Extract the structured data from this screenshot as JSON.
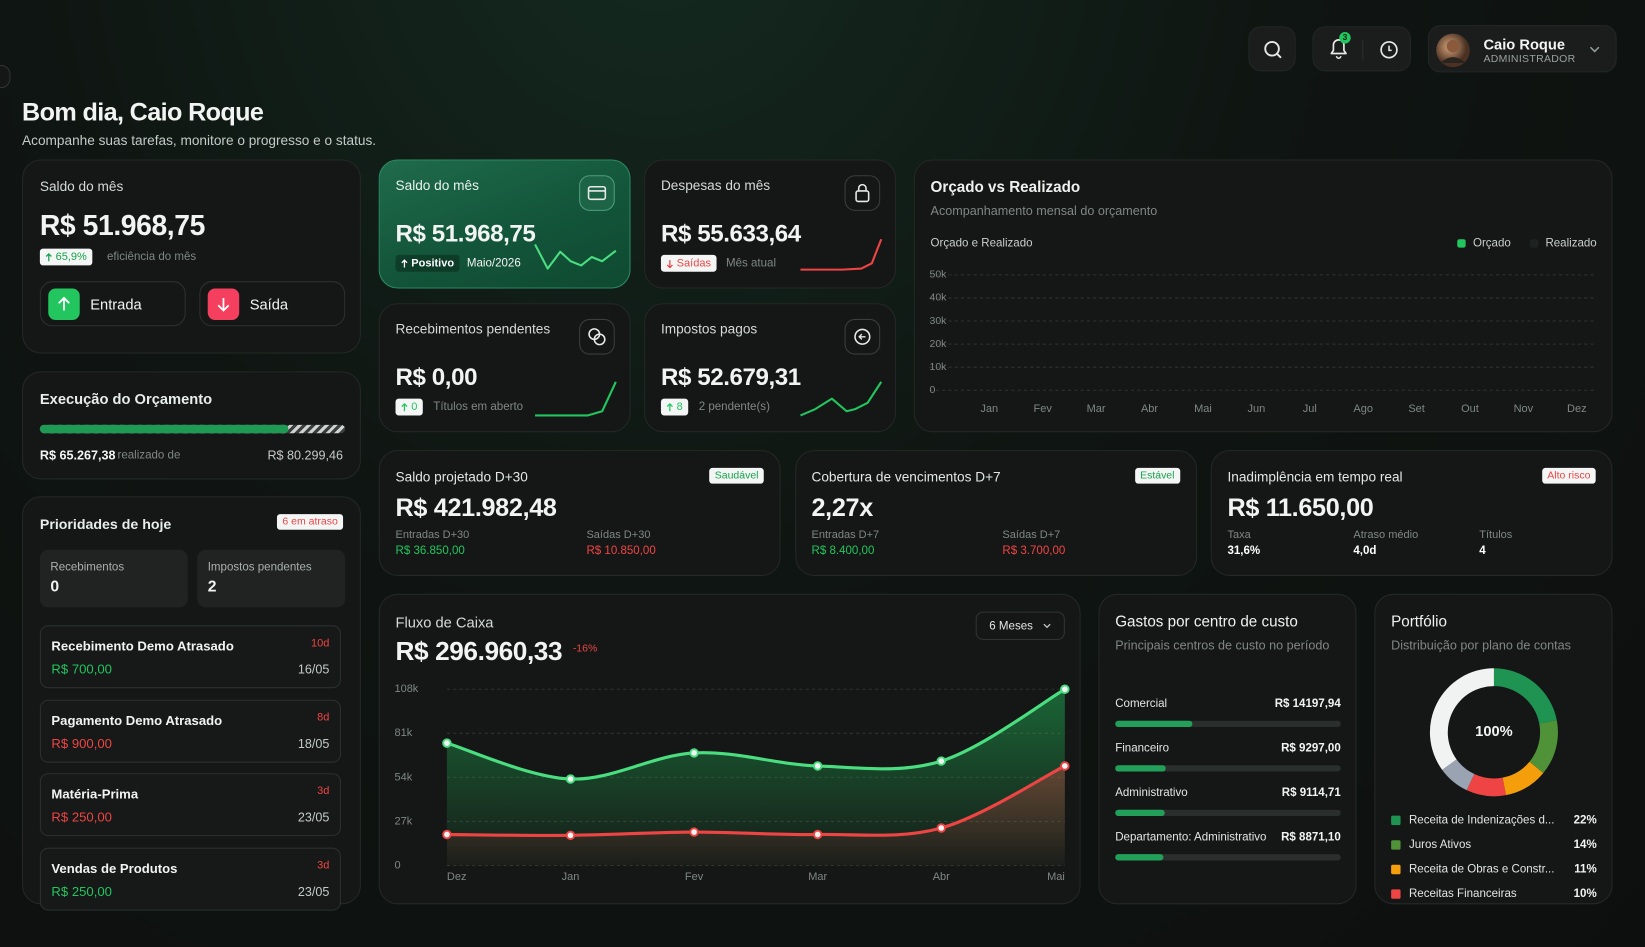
{
  "header": {
    "notifications": "3",
    "user_name": "Caio Roque",
    "user_role": "ADMINISTRADOR"
  },
  "greeting": {
    "title": "Bom dia, Caio Roque",
    "subtitle": "Acompanhe suas tarefas, monitore o progresso e o status."
  },
  "balance": {
    "label": "Saldo do mês",
    "value": "R$ 51.968,75",
    "badge": "65,9%",
    "note": "eficiência do mês",
    "income_button": "Entrada",
    "expense_button": "Saída"
  },
  "budget_execution": {
    "title": "Execução do Orçamento",
    "realized": "R$ 65.267,38",
    "realized_note": "realizado de",
    "total": "R$ 80.299,46"
  },
  "priorities": {
    "title": "Prioridades de hoje",
    "badge": "6 em atraso",
    "stats": [
      {
        "label": "Recebimentos",
        "value": "0"
      },
      {
        "label": "Impostos pendentes",
        "value": "2"
      }
    ],
    "items": [
      {
        "title": "Recebimento Demo Atrasado",
        "delay": "10d",
        "amount": "R$ 700,00",
        "date": "16/05",
        "color": "#22c55e"
      },
      {
        "title": "Pagamento Demo Atrasado",
        "delay": "8d",
        "amount": "R$ 900,00",
        "date": "18/05",
        "color": "#ef4444"
      },
      {
        "title": "Matéria-Prima",
        "delay": "3d",
        "amount": "R$ 250,00",
        "date": "23/05",
        "color": "#ef4444"
      },
      {
        "title": "Vendas de Produtos",
        "delay": "3d",
        "amount": "R$ 250,00",
        "date": "23/05",
        "color": "#22c55e"
      }
    ]
  },
  "kpis": [
    {
      "title": "Saldo do mês",
      "value": "R$ 51.968,75",
      "badge": "Positivo",
      "note": "Maio/2026",
      "badge_color": "#ffffff"
    },
    {
      "title": "Despesas do mês",
      "value": "R$ 55.633,64",
      "badge": "Saídas",
      "note": "Mês atual",
      "badge_color": "#ef4444"
    },
    {
      "title": "Recebimentos pendentes",
      "value": "R$ 0,00",
      "badge": "0",
      "note": "Títulos em aberto",
      "badge_color": "#22c55e"
    },
    {
      "title": "Impostos pagos",
      "value": "R$ 52.679,31",
      "badge": "8",
      "note": "2 pendente(s)",
      "badge_color": "#22c55e"
    }
  ],
  "forecast": [
    {
      "title": "Saldo projetado D+30",
      "tag": "Saudável",
      "tag_color": "#16a34a",
      "value": "R$ 421.982,48",
      "stats": [
        {
          "label": "Entradas D+30",
          "value": "R$ 36.850,00",
          "color": "#22c55e"
        },
        {
          "label": "Saídas D+30",
          "value": "R$ 10.850,00",
          "color": "#ef4444"
        }
      ]
    },
    {
      "title": "Cobertura de vencimentos D+7",
      "tag": "Estável",
      "tag_color": "#16a34a",
      "value": "2,27x",
      "stats": [
        {
          "label": "Entradas D+7",
          "value": "R$ 8.400,00",
          "color": "#22c55e"
        },
        {
          "label": "Saídas D+7",
          "value": "R$ 3.700,00",
          "color": "#ef4444"
        }
      ]
    },
    {
      "title": "Inadimplência em tempo real",
      "tag": "Alto risco",
      "tag_color": "#ef4444",
      "value": "R$ 11.650,00",
      "stats": [
        {
          "label": "Taxa",
          "value": "31,6%",
          "color": "#ffffff"
        },
        {
          "label": "Atraso médio",
          "value": "4,0d",
          "color": "#ffffff"
        },
        {
          "label": "Títulos",
          "value": "4",
          "color": "#ffffff"
        }
      ]
    }
  ],
  "chart_data": [
    {
      "type": "line",
      "title": "Orçado vs Realizado",
      "subtitle": "Acompanhamento mensal do orçamento",
      "label": "Orçado e Realizado",
      "categories": [
        "Jan",
        "Fev",
        "Mar",
        "Abr",
        "Mai",
        "Jun",
        "Jul",
        "Ago",
        "Set",
        "Out",
        "Nov",
        "Dez"
      ],
      "series": [
        {
          "name": "Orçado",
          "color": "#22c55e",
          "values": [
            null,
            null,
            null,
            null,
            null,
            null,
            null,
            null,
            null,
            null,
            null,
            null
          ]
        },
        {
          "name": "Realizado",
          "color": "#1e2221",
          "values": [
            null,
            null,
            null,
            null,
            null,
            null,
            null,
            null,
            null,
            null,
            null,
            null
          ]
        }
      ],
      "ylim": [
        0,
        50000
      ],
      "yticks": [
        0,
        {
          "value": 10000,
          "label": "10k"
        },
        {
          "value": 20000,
          "label": "20k"
        },
        {
          "value": 30000,
          "label": "30k"
        },
        {
          "value": 40000,
          "label": "40k"
        },
        {
          "value": 50000,
          "label": "50k"
        }
      ],
      "grid": true
    },
    {
      "type": "area",
      "title": "Fluxo de Caixa",
      "total": "R$ 296.960,33",
      "change": "-16%",
      "period": "6 Meses",
      "categories": [
        "Dez",
        "Jan",
        "Fev",
        "Mar",
        "Abr",
        "Mai"
      ],
      "series": [
        {
          "color": "#4ade80",
          "values": [
            75000,
            53000,
            69000,
            61000,
            64000,
            108000
          ]
        },
        {
          "color": "#ef4444",
          "values": [
            19000,
            18500,
            20500,
            19000,
            23000,
            61000
          ]
        }
      ],
      "ylim": [
        0,
        108000
      ],
      "yticks": [
        0,
        {
          "value": 27000,
          "label": "27k"
        },
        {
          "value": 54000,
          "label": "54k"
        },
        {
          "value": 81000,
          "label": "81k"
        },
        {
          "value": 108000,
          "label": "108k"
        }
      ],
      "grid": true
    },
    {
      "type": "bar",
      "title": "Gastos por centro de custo",
      "subtitle": "Principais centros de custo no período",
      "categories": [
        "Comercial",
        "Financeiro",
        "Administrativo",
        "Departamento: Administrativo"
      ],
      "values": [
        14197.94,
        9297.0,
        9114.71,
        8871.1
      ],
      "value_labels": [
        "R$ 14197,94",
        "R$ 9297,00",
        "R$ 9114,71",
        "R$ 8871,10"
      ],
      "color": "#22a05a"
    },
    {
      "type": "pie",
      "title": "Portfólio",
      "subtitle": "Distribuição por plano de contas",
      "center_label": "100%",
      "categories": [
        "Receita de Indenizações d...",
        "Juros Ativos",
        "Receita de Obras e Constr...",
        "Receitas Financeiras",
        null,
        null
      ],
      "values": [
        22,
        14,
        11,
        10,
        8,
        35
      ],
      "value_labels": [
        "22%",
        "14%",
        "11%",
        "10%",
        null,
        null
      ],
      "colors": [
        "#1f9352",
        "#4f9238",
        "#f59e0b",
        "#ef4444",
        "#9aa3b2",
        "#f1f3f2"
      ]
    }
  ]
}
